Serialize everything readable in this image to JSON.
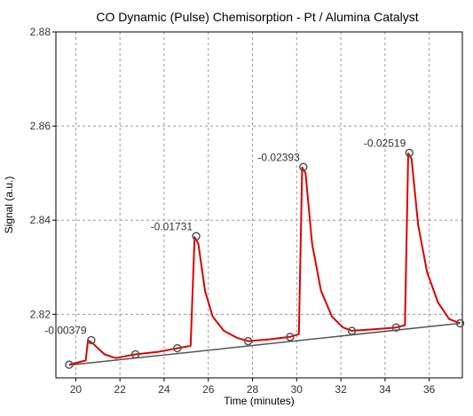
{
  "chart_data": {
    "type": "line",
    "title": "CO Dynamic (Pulse) Chemisorption - Pt / Alumina Catalyst",
    "xlabel": "Time (minutes)",
    "ylabel": "Signal (a.u.)",
    "xlim": [
      19.1,
      37.5
    ],
    "ylim": [
      2.8065,
      2.88
    ],
    "x_ticks": [
      20,
      22,
      24,
      26,
      28,
      30,
      32,
      34,
      36
    ],
    "y_ticks": [
      2.82,
      2.84,
      2.86,
      2.88
    ],
    "x_tick_labels": [
      "20",
      "22",
      "24",
      "26",
      "28",
      "30",
      "32",
      "34",
      "36"
    ],
    "y_tick_labels": [
      "2.82",
      "2.84",
      "2.86",
      "2.88"
    ],
    "grid": true,
    "colors": {
      "signal": "#dd0000",
      "baseline": "#555555",
      "marker": "#555555",
      "grid": "#999999"
    },
    "baseline": {
      "x": [
        19.7,
        37.4
      ],
      "y": [
        2.8092,
        2.8181
      ]
    },
    "signal_points": [
      [
        19.7,
        2.8093
      ],
      [
        20.45,
        2.8102
      ],
      [
        20.55,
        2.8145
      ],
      [
        20.75,
        2.8139
      ],
      [
        21.3,
        2.8115
      ],
      [
        21.8,
        2.8107
      ],
      [
        22.7,
        2.8115
      ],
      [
        23.7,
        2.812
      ],
      [
        24.6,
        2.8128
      ],
      [
        25.2,
        2.8133
      ],
      [
        25.38,
        2.8364
      ],
      [
        25.55,
        2.835
      ],
      [
        25.85,
        2.825
      ],
      [
        26.2,
        2.8195
      ],
      [
        26.7,
        2.8165
      ],
      [
        27.3,
        2.815
      ],
      [
        27.8,
        2.8143
      ],
      [
        28.8,
        2.8147
      ],
      [
        29.7,
        2.8152
      ],
      [
        30.1,
        2.8158
      ],
      [
        30.25,
        2.8512
      ],
      [
        30.4,
        2.85
      ],
      [
        30.7,
        2.835
      ],
      [
        31.1,
        2.825
      ],
      [
        31.6,
        2.8195
      ],
      [
        32.1,
        2.8172
      ],
      [
        32.5,
        2.8165
      ],
      [
        33.5,
        2.8168
      ],
      [
        34.5,
        2.8172
      ],
      [
        34.9,
        2.8177
      ],
      [
        35.05,
        2.8542
      ],
      [
        35.2,
        2.853
      ],
      [
        35.5,
        2.839
      ],
      [
        35.9,
        2.829
      ],
      [
        36.4,
        2.8225
      ],
      [
        36.9,
        2.819
      ],
      [
        37.4,
        2.8181
      ]
    ],
    "markers": [
      [
        19.7,
        2.8093
      ],
      [
        20.7,
        2.8145
      ],
      [
        22.7,
        2.8115
      ],
      [
        24.6,
        2.8128
      ],
      [
        25.45,
        2.8366
      ],
      [
        27.8,
        2.8143
      ],
      [
        29.7,
        2.8152
      ],
      [
        30.3,
        2.8513
      ],
      [
        32.5,
        2.8165
      ],
      [
        34.5,
        2.8172
      ],
      [
        35.1,
        2.8543
      ],
      [
        37.4,
        2.8181
      ]
    ],
    "peak_labels": [
      {
        "text": "-0.00379",
        "x": 20.65,
        "y": 2.8145
      },
      {
        "text": "-0.01731",
        "x": 25.45,
        "y": 2.8366
      },
      {
        "text": "-0.02393",
        "x": 30.3,
        "y": 2.8513
      },
      {
        "text": "-0.02519",
        "x": 35.1,
        "y": 2.8543
      }
    ]
  }
}
